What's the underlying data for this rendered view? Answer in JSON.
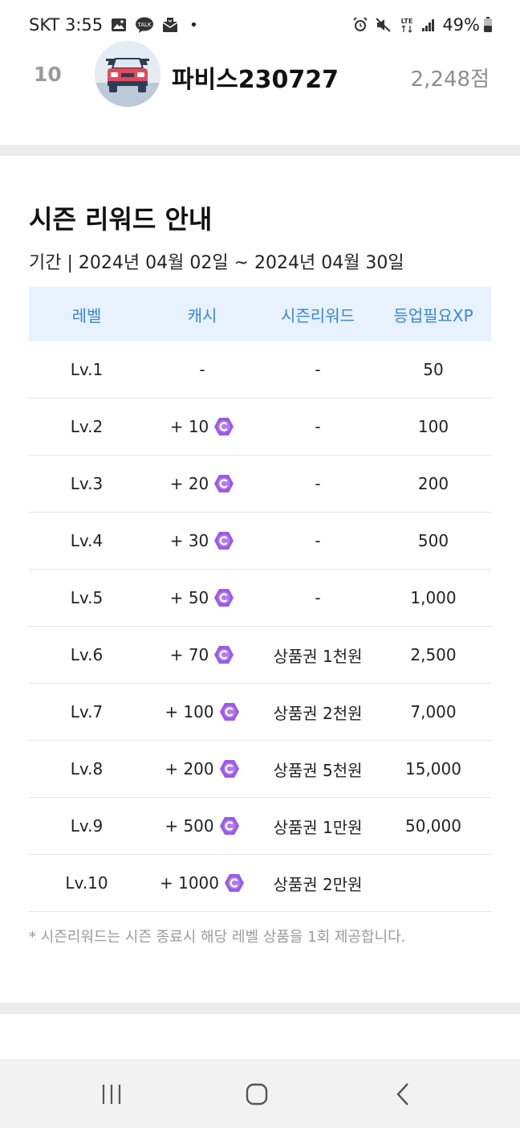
{
  "status_bar": {
    "carrier_time": "SKT 3:55",
    "battery": "49%",
    "notif_dot": "•"
  },
  "rank_entry": {
    "rank": "10",
    "name": "파비스230727",
    "score": "2,248점"
  },
  "reward_section": {
    "title": "시즌 리워드 안내",
    "period": "기간 | 2024년 04월 02일 ~ 2024년 04월 30일",
    "columns": [
      "레벨",
      "캐시",
      "시즌리워드",
      "등업필요XP"
    ],
    "rows": [
      {
        "level": "Lv.1",
        "cash": "-",
        "reward": "-",
        "xp": "50",
        "coin": false
      },
      {
        "level": "Lv.2",
        "cash": "+ 10",
        "reward": "-",
        "xp": "100",
        "coin": true
      },
      {
        "level": "Lv.3",
        "cash": "+ 20",
        "reward": "-",
        "xp": "200",
        "coin": true
      },
      {
        "level": "Lv.4",
        "cash": "+ 30",
        "reward": "-",
        "xp": "500",
        "coin": true
      },
      {
        "level": "Lv.5",
        "cash": "+ 50",
        "reward": "-",
        "xp": "1,000",
        "coin": true
      },
      {
        "level": "Lv.6",
        "cash": "+ 70",
        "reward": "상품권 1천원",
        "xp": "2,500",
        "coin": true
      },
      {
        "level": "Lv.7",
        "cash": "+ 100",
        "reward": "상품권 2천원",
        "xp": "7,000",
        "coin": true
      },
      {
        "level": "Lv.8",
        "cash": "+ 200",
        "reward": "상품권 5천원",
        "xp": "15,000",
        "coin": true
      },
      {
        "level": "Lv.9",
        "cash": "+ 500",
        "reward": "상품권 1만원",
        "xp": "50,000",
        "coin": true
      },
      {
        "level": "Lv.10",
        "cash": "+ 1000",
        "reward": "상품권 2만원",
        "xp": "",
        "coin": true
      }
    ],
    "footnote": "* 시즌리워드는 시즌 종료시 해당 레벨 상품을 1회 제공합니다."
  },
  "colors": {
    "header_bg": "#e7f2fe",
    "header_text": "#3a85d8",
    "coin": "#9b59e8",
    "divider": "#ececec"
  },
  "icons": {
    "status": [
      "gallery-icon",
      "kakaotalk-icon",
      "mail-icon",
      "alarm-icon",
      "mute-icon",
      "lte-icon",
      "signal-icon",
      "battery-icon"
    ],
    "nav": [
      "recent-apps-icon",
      "home-icon",
      "back-icon"
    ],
    "coin": "cash-coin-icon"
  }
}
